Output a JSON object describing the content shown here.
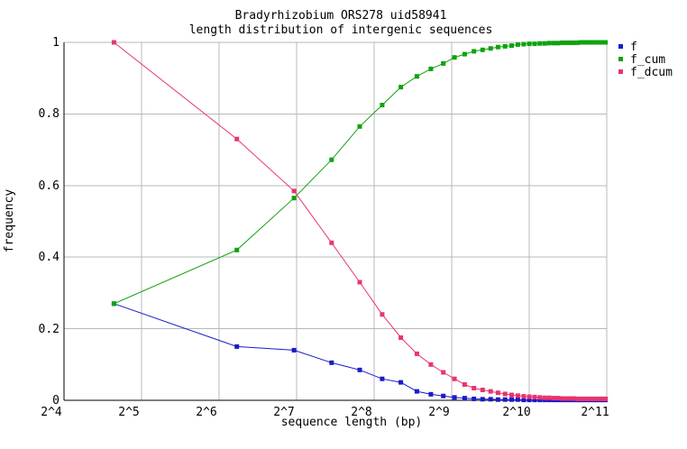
{
  "title": {
    "line1": "Bradyrhizobium ORS278 uid58941",
    "line2": "length distribution of intergenic sequences"
  },
  "axes": {
    "x_label": "sequence length (bp)",
    "y_label": "frequency",
    "x_ticks": [
      "2^4",
      "2^5",
      "2^6",
      "2^7",
      "2^8",
      "2^9",
      "2^10",
      "2^11"
    ],
    "y_ticks": [
      "0",
      "0.2",
      "0.4",
      "0.6",
      "0.8",
      "1"
    ],
    "y_tick_values": [
      0,
      0.2,
      0.4,
      0.6,
      0.8,
      1
    ],
    "grid": true,
    "grid_color": "#b8b8b8",
    "axis_color": "#000000"
  },
  "legend": {
    "position": "top-right-outside",
    "items": [
      {
        "label": "f",
        "color": "#1a1acb",
        "marker": "square-dot"
      },
      {
        "label": "f_cum",
        "color": "#0ca30c",
        "marker": "square-dot"
      },
      {
        "label": "f_dcum",
        "color": "#e8356d",
        "marker": "square-dot"
      }
    ]
  },
  "chart_data": {
    "type": "line",
    "title": "Bradyrhizobium ORS278 uid58941 — length distribution of intergenic sequences",
    "xlabel": "sequence length (bp)",
    "ylabel": "frequency",
    "x_scale": "log2",
    "xlim_log2": [
      4,
      11
    ],
    "ylim": [
      0,
      1
    ],
    "x": [
      25,
      75,
      125,
      175,
      225,
      275,
      325,
      375,
      425,
      475,
      525,
      575,
      625,
      675,
      725,
      775,
      825,
      875,
      925,
      975,
      1025,
      1075,
      1125,
      1175,
      1225,
      1275,
      1325,
      1375,
      1425,
      1475,
      1525,
      1575,
      1625,
      1675,
      1725,
      1775,
      1825,
      1875,
      1925,
      1975,
      2025
    ],
    "series": [
      {
        "name": "f",
        "color": "#1a1acb",
        "values": [
          0.27,
          0.15,
          0.14,
          0.105,
          0.085,
          0.06,
          0.05,
          0.025,
          0.017,
          0.012,
          0.008,
          0.006,
          0.004,
          0.003,
          0.003,
          0.002,
          0.002,
          0.002,
          0.002,
          0.001,
          0.001,
          0.001,
          0.001,
          0.001,
          0.001,
          0.001,
          0.001,
          0.001,
          0.001,
          0.001,
          0.001,
          0.001,
          0.001,
          0.001,
          0.001,
          0.001,
          0.001,
          0.001,
          0.001,
          0.001,
          0.001
        ]
      },
      {
        "name": "f_cum",
        "color": "#0ca30c",
        "values": [
          0.27,
          0.42,
          0.565,
          0.672,
          0.765,
          0.825,
          0.875,
          0.905,
          0.926,
          0.941,
          0.958,
          0.967,
          0.975,
          0.979,
          0.983,
          0.987,
          0.989,
          0.991,
          0.994,
          0.995,
          0.996,
          0.996,
          0.997,
          0.997,
          0.998,
          0.998,
          0.998,
          0.999,
          0.999,
          0.999,
          0.999,
          0.999,
          1.0,
          1.0,
          1.0,
          1.0,
          1.0,
          1.0,
          1.0,
          1.0,
          1.0
        ]
      },
      {
        "name": "f_dcum",
        "color": "#e8356d",
        "values": [
          1.0,
          0.73,
          0.585,
          0.44,
          0.33,
          0.24,
          0.175,
          0.13,
          0.1,
          0.078,
          0.06,
          0.044,
          0.034,
          0.029,
          0.025,
          0.021,
          0.018,
          0.015,
          0.013,
          0.011,
          0.01,
          0.009,
          0.008,
          0.007,
          0.007,
          0.006,
          0.006,
          0.005,
          0.005,
          0.005,
          0.005,
          0.004,
          0.004,
          0.004,
          0.004,
          0.004,
          0.004,
          0.004,
          0.004,
          0.004,
          0.004
        ]
      }
    ]
  }
}
